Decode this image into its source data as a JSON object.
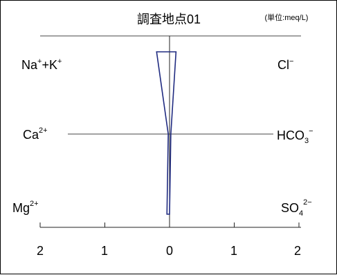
{
  "chart_data": {
    "type": "stiff-diagram",
    "title": "調査地点01",
    "unit": "(単位:meq/L)",
    "cations": [
      {
        "name": "Na",
        "sup1": "+",
        "mid": "+K",
        "sup2": "+"
      },
      {
        "name": "Ca",
        "sup1": "2+"
      },
      {
        "name": "Mg",
        "sup1": "2+"
      }
    ],
    "anions": [
      {
        "name": "Cl",
        "sup1": "−"
      },
      {
        "name": "HCO",
        "sub": "3",
        "sup1": "−"
      },
      {
        "name": "SO",
        "sub": "4",
        "sup1": "2−"
      }
    ],
    "x_ticks": [
      "2",
      "1",
      "0",
      "1",
      "2"
    ],
    "xlim": [
      -2,
      2
    ],
    "values": {
      "cation": [
        0.2,
        0.02,
        0.04
      ],
      "anion": [
        0.1,
        0.02,
        0.0
      ]
    },
    "polygon_color": "#1f2a80"
  }
}
